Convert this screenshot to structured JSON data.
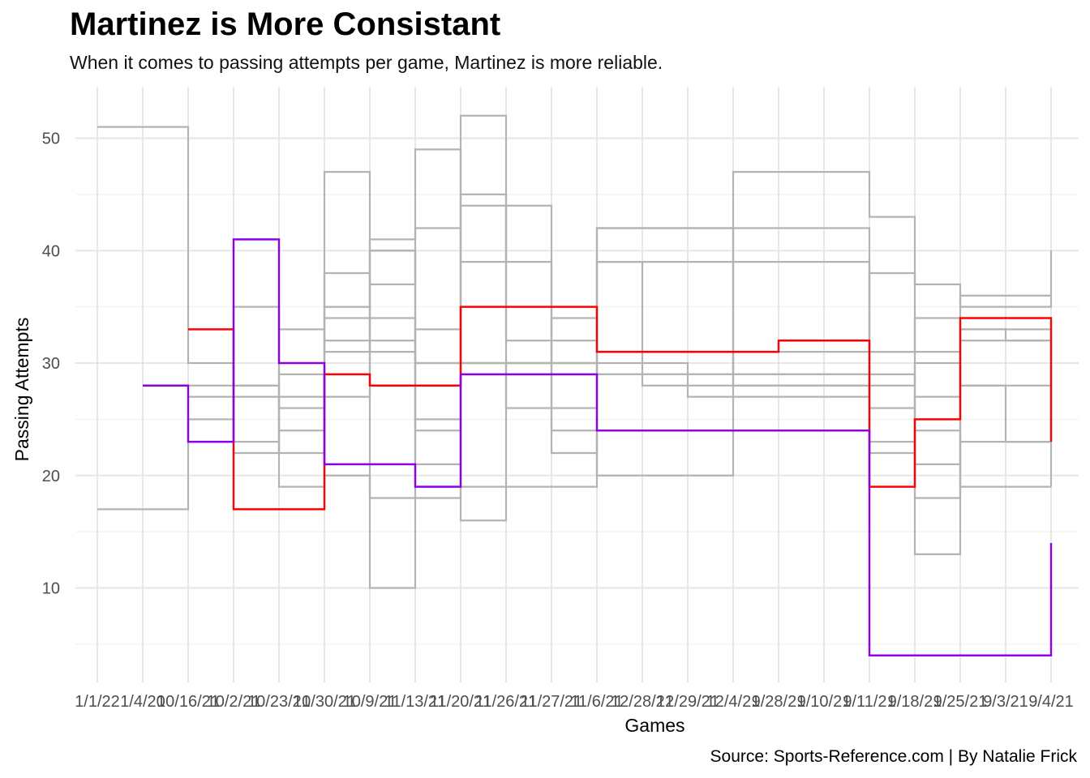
{
  "title": "Martinez is More Consistant",
  "subtitle": "When it comes to passing attempts per game, Martinez is more reliable.",
  "caption": "Source: Sports-Reference.com | By Natalie Frick",
  "chart_data": {
    "type": "line",
    "step": "hv",
    "xlabel": "Games",
    "ylabel": "Passing Attempts",
    "categories": [
      "1/1/22",
      "1/4/20",
      "10/16/21",
      "10/2/21",
      "10/23/21",
      "10/30/21",
      "10/9/21",
      "11/13/21",
      "11/20/21",
      "11/26/21",
      "11/27/21",
      "11/6/21",
      "12/28/21",
      "12/29/21",
      "12/4/21",
      "9/28/21",
      "9/10/21",
      "9/11/21",
      "9/18/21",
      "9/25/21",
      "9/3/21",
      "9/4/21"
    ],
    "yticks": [
      10,
      20,
      30,
      40,
      50
    ],
    "ylim": [
      4,
      54
    ],
    "grid": true,
    "colors": {
      "highlight_red": "#ff0000",
      "highlight_purple": "#8b00e8",
      "other": "#b3b3b3",
      "grid": "#e6e6e6"
    },
    "series": [
      {
        "group": "other",
        "color": "#b3b3b3",
        "values": [
          51,
          51,
          30,
          28,
          22,
          20,
          18,
          18,
          45,
          39,
          24,
          20,
          20,
          20,
          28,
          28,
          28,
          28,
          30,
          28,
          23,
          23
        ]
      },
      {
        "group": "other",
        "color": "#b3b3b3",
        "values": [
          17,
          17,
          25,
          22,
          27,
          35,
          40,
          21,
          30,
          30,
          30,
          39,
          39,
          39,
          39,
          39,
          39,
          31,
          34,
          36,
          36,
          36
        ]
      },
      {
        "group": "other",
        "color": "#b3b3b3",
        "values": [
          null,
          null,
          27,
          23,
          33,
          32,
          31,
          25,
          44,
          26,
          26,
          42,
          42,
          42,
          42,
          42,
          42,
          23,
          27,
          33,
          33,
          33
        ]
      },
      {
        "group": "other",
        "color": "#b3b3b3",
        "values": [
          null,
          null,
          28,
          35,
          24,
          27,
          41,
          42,
          39,
          44,
          22,
          39,
          28,
          28,
          47,
          47,
          47,
          43,
          37,
          35,
          35,
          40
        ]
      },
      {
        "group": "other",
        "color": "#b3b3b3",
        "values": [
          null,
          null,
          null,
          27,
          26,
          47,
          37,
          49,
          19,
          30,
          34,
          30,
          30,
          27,
          27,
          27,
          27,
          38,
          31,
          28,
          28,
          19
        ]
      },
      {
        "group": "other",
        "color": "#b3b3b3",
        "values": [
          null,
          null,
          null,
          28,
          19,
          34,
          10,
          33,
          52,
          32,
          32,
          31,
          31,
          31,
          29,
          29,
          29,
          26,
          13,
          33,
          32,
          26
        ]
      },
      {
        "group": "other",
        "color": "#b3b3b3",
        "values": [
          null,
          null,
          null,
          null,
          29,
          38,
          32,
          24,
          16,
          19,
          19,
          42,
          42,
          42,
          28,
          28,
          28,
          22,
          21,
          23,
          23,
          23
        ]
      },
      {
        "group": "other",
        "color": "#b3b3b3",
        "values": [
          null,
          null,
          null,
          null,
          null,
          35,
          34,
          30,
          30,
          30,
          30,
          29,
          29,
          29,
          31,
          31,
          31,
          31,
          24,
          19,
          19,
          19
        ]
      },
      {
        "group": "other",
        "color": "#b3b3b3",
        "values": [
          null,
          null,
          null,
          null,
          null,
          31,
          40,
          30,
          30,
          30,
          30,
          29,
          29,
          29,
          29,
          29,
          29,
          29,
          18,
          32,
          32,
          32
        ]
      },
      {
        "name": "Martinez",
        "group": "highlight",
        "color": "#ff0000",
        "values": [
          null,
          null,
          33,
          17,
          17,
          29,
          28,
          28,
          35,
          35,
          35,
          31,
          31,
          31,
          31,
          32,
          32,
          19,
          25,
          34,
          34,
          23
        ]
      },
      {
        "group": "highlight",
        "color": "#8b00e8",
        "values": [
          null,
          28,
          23,
          41,
          30,
          21,
          21,
          19,
          29,
          29,
          29,
          24,
          24,
          24,
          24,
          24,
          24,
          4,
          4,
          4,
          4,
          14
        ]
      }
    ]
  }
}
